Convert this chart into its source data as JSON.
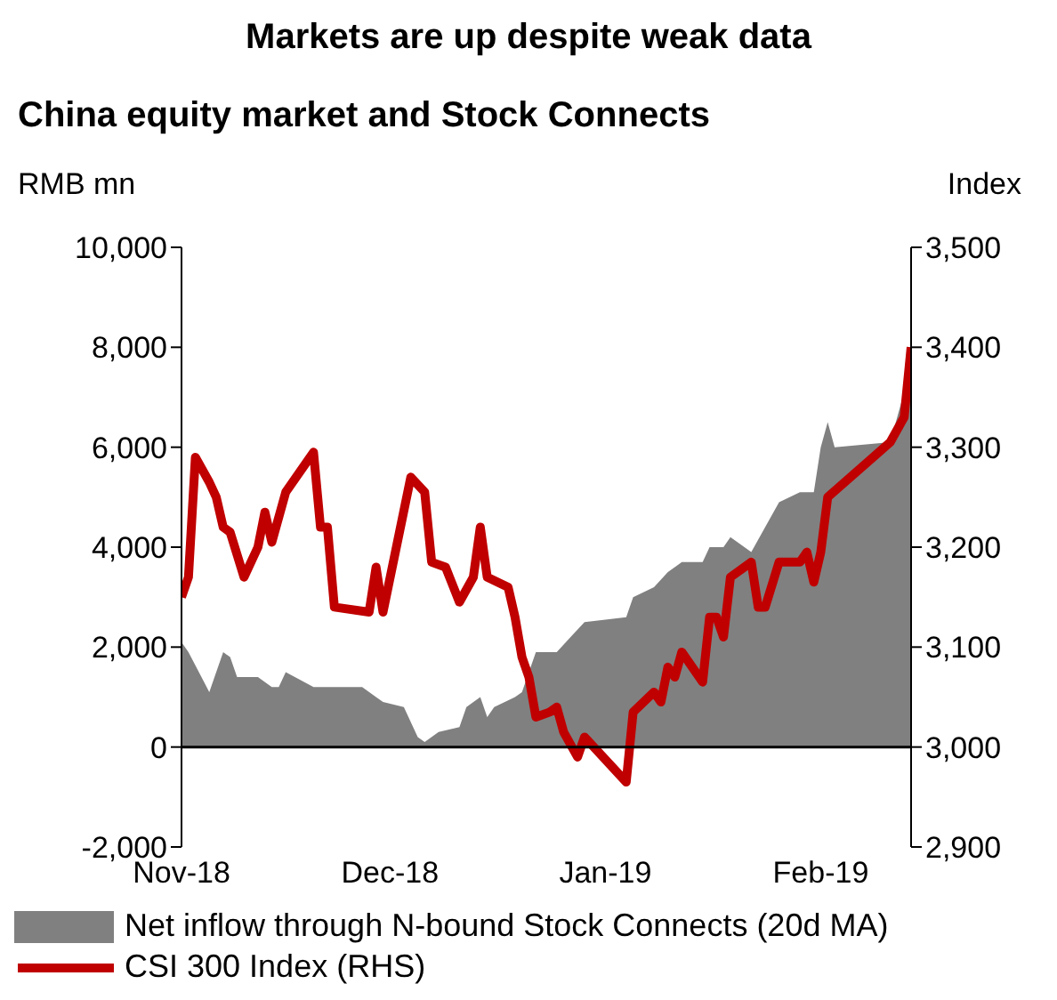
{
  "chart_data": {
    "type": "area",
    "title": "Markets are up despite weak data",
    "subtitle": "China equity market and Stock Connects",
    "ylabel": "RMB mn",
    "y2label": "Index",
    "xlim": [
      "2018-11-01",
      "2019-02-14"
    ],
    "xticks": [
      {
        "value": "2018-11-01",
        "label": "Nov-18"
      },
      {
        "value": "2018-12-01",
        "label": "Dec-18"
      },
      {
        "value": "2019-01-01",
        "label": "Jan-19"
      },
      {
        "value": "2019-02-01",
        "label": "Feb-19"
      }
    ],
    "ylim": [
      -2000,
      10000
    ],
    "yticks": [
      {
        "value": -2000,
        "label": "-2,000"
      },
      0,
      {
        "value": 2000,
        "label": "2,000"
      },
      {
        "value": 4000,
        "label": "4,000"
      },
      {
        "value": 6000,
        "label": "6,000"
      },
      {
        "value": 8000,
        "label": "8,000"
      },
      {
        "value": 10000,
        "label": "10,000"
      }
    ],
    "y2lim": [
      2900,
      3500
    ],
    "y2ticks": [
      {
        "value": 2900,
        "label": "2,900"
      },
      {
        "value": 3000,
        "label": "3,000"
      },
      {
        "value": 3100,
        "label": "3,100"
      },
      {
        "value": 3200,
        "label": "3,200"
      },
      {
        "value": 3300,
        "label": "3,300"
      },
      {
        "value": 3400,
        "label": "3,400"
      },
      {
        "value": 3500,
        "label": "3,500"
      }
    ],
    "legend": "bottom",
    "marker": "none",
    "series": [
      {
        "name": "Net inflow through N-bound Stock Connects (20d MA)",
        "color": "#808080",
        "x": [
          "2018-11-01",
          "2018-11-02",
          "2018-11-05",
          "2018-11-07",
          "2018-11-08",
          "2018-11-09",
          "2018-11-12",
          "2018-11-14",
          "2018-11-15",
          "2018-11-16",
          "2018-11-20",
          "2018-11-22",
          "2018-11-23",
          "2018-11-27",
          "2018-11-29",
          "2018-11-30",
          "2018-12-03",
          "2018-12-05",
          "2018-12-06",
          "2018-12-08",
          "2018-12-11",
          "2018-12-12",
          "2018-12-14",
          "2018-12-15",
          "2018-12-16",
          "2018-12-19",
          "2018-12-20",
          "2018-12-22",
          "2018-12-25",
          "2018-12-27",
          "2018-12-29",
          "2019-01-04",
          "2019-01-05",
          "2019-01-08",
          "2019-01-10",
          "2019-01-12",
          "2019-01-15",
          "2019-01-16",
          "2019-01-18",
          "2019-01-19",
          "2019-01-22",
          "2019-01-24",
          "2019-01-26",
          "2019-01-29",
          "2019-01-31",
          "2019-02-01",
          "2019-02-02",
          "2019-02-03",
          "2019-02-11",
          "2019-02-13",
          "2019-02-14"
        ],
        "values": [
          2100,
          1900,
          1100,
          1900,
          1800,
          1400,
          1400,
          1200,
          1200,
          1500,
          1200,
          1200,
          1200,
          1200,
          1000,
          900,
          800,
          200,
          100,
          300,
          400,
          800,
          1000,
          600,
          800,
          1000,
          1100,
          1900,
          1900,
          2200,
          2500,
          2600,
          3000,
          3200,
          3500,
          3700,
          3700,
          4000,
          4000,
          4200,
          3900,
          4400,
          4900,
          5100,
          5100,
          6000,
          6500,
          6000,
          6100,
          7100,
          8000
        ]
      },
      {
        "name": "CSI 300 Index (RHS)",
        "type": "line",
        "axis": "y2",
        "color": "#c00000",
        "line_style": "solid",
        "x": [
          "2018-11-01",
          "2018-11-02",
          "2018-11-03",
          "2018-11-05",
          "2018-11-06",
          "2018-11-07",
          "2018-11-08",
          "2018-11-10",
          "2018-11-12",
          "2018-11-13",
          "2018-11-14",
          "2018-11-16",
          "2018-11-20",
          "2018-11-21",
          "2018-11-22",
          "2018-11-23",
          "2018-11-28",
          "2018-11-29",
          "2018-11-30",
          "2018-12-04",
          "2018-12-06",
          "2018-12-07",
          "2018-12-09",
          "2018-12-11",
          "2018-12-13",
          "2018-12-14",
          "2018-12-15",
          "2018-12-18",
          "2018-12-19",
          "2018-12-20",
          "2018-12-21",
          "2018-12-22",
          "2018-12-24",
          "2018-12-25",
          "2018-12-26",
          "2018-12-28",
          "2018-12-29",
          "2019-01-04",
          "2019-01-05",
          "2019-01-08",
          "2019-01-09",
          "2019-01-10",
          "2019-01-11",
          "2019-01-12",
          "2019-01-15",
          "2019-01-16",
          "2019-01-17",
          "2019-01-18",
          "2019-01-19",
          "2019-01-22",
          "2019-01-23",
          "2019-01-24",
          "2019-01-26",
          "2019-01-29",
          "2019-01-30",
          "2019-01-31",
          "2019-02-01",
          "2019-02-02",
          "2019-02-11",
          "2019-02-13",
          "2019-02-14"
        ],
        "values": [
          3150,
          3170,
          3290,
          3265,
          3250,
          3220,
          3215,
          3170,
          3200,
          3235,
          3205,
          3255,
          3295,
          3220,
          3220,
          3140,
          3135,
          3180,
          3135,
          3270,
          3255,
          3185,
          3180,
          3145,
          3170,
          3220,
          3170,
          3160,
          3130,
          3090,
          3070,
          3030,
          3035,
          3040,
          3015,
          2990,
          3010,
          2965,
          3035,
          3055,
          3045,
          3080,
          3070,
          3095,
          3065,
          3130,
          3130,
          3110,
          3170,
          3185,
          3140,
          3140,
          3185,
          3185,
          3195,
          3165,
          3195,
          3250,
          3305,
          3330,
          3400
        ]
      }
    ]
  }
}
